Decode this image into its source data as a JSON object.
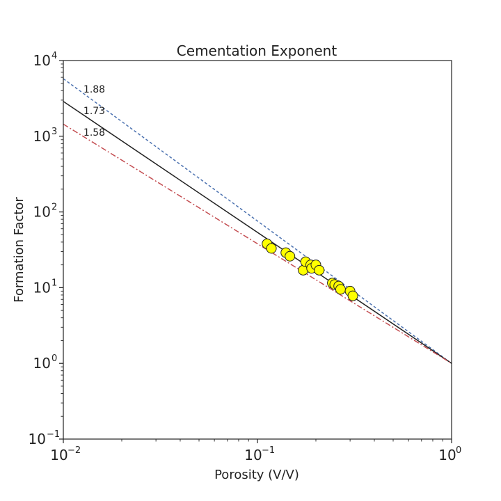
{
  "chart_data": {
    "type": "scatter",
    "title": "Cementation Exponent",
    "xlabel": "Porosity (V/V)",
    "ylabel": "Formation Factor",
    "xscale": "log",
    "yscale": "log",
    "xlim": [
      0.01,
      1
    ],
    "ylim": [
      0.1,
      10000
    ],
    "x_ticks": [
      {
        "value": 0.01,
        "base": "10",
        "exp": "−2"
      },
      {
        "value": 0.1,
        "base": "10",
        "exp": "−1"
      },
      {
        "value": 1,
        "base": "10",
        "exp": "0"
      }
    ],
    "y_ticks": [
      {
        "value": 0.1,
        "base": "10",
        "exp": "−1"
      },
      {
        "value": 1,
        "base": "10",
        "exp": "0"
      },
      {
        "value": 10,
        "base": "10",
        "exp": "1"
      },
      {
        "value": 100,
        "base": "10",
        "exp": "2"
      },
      {
        "value": 1000,
        "base": "10",
        "exp": "3"
      },
      {
        "value": 10000,
        "base": "10",
        "exp": "4"
      }
    ],
    "lines": [
      {
        "label": "1.88",
        "m": 1.88,
        "color": "#4c72b0",
        "dash": "4,3"
      },
      {
        "label": "1.73",
        "m": 1.73,
        "color": "#222222",
        "dash": ""
      },
      {
        "label": "1.58",
        "m": 1.58,
        "color": "#c44e52",
        "dash": "8,3,2,3"
      }
    ],
    "points": [
      {
        "x": 0.112,
        "y": 38
      },
      {
        "x": 0.118,
        "y": 33
      },
      {
        "x": 0.14,
        "y": 29
      },
      {
        "x": 0.147,
        "y": 26
      },
      {
        "x": 0.172,
        "y": 17
      },
      {
        "x": 0.177,
        "y": 22
      },
      {
        "x": 0.188,
        "y": 20
      },
      {
        "x": 0.19,
        "y": 18
      },
      {
        "x": 0.2,
        "y": 20
      },
      {
        "x": 0.208,
        "y": 17
      },
      {
        "x": 0.243,
        "y": 11.5
      },
      {
        "x": 0.25,
        "y": 11
      },
      {
        "x": 0.262,
        "y": 10.5
      },
      {
        "x": 0.268,
        "y": 9.5
      },
      {
        "x": 0.3,
        "y": 9
      },
      {
        "x": 0.31,
        "y": 7.8
      }
    ],
    "marker_color": "#ffff00",
    "marker_edge": "#222222",
    "grid": false
  }
}
